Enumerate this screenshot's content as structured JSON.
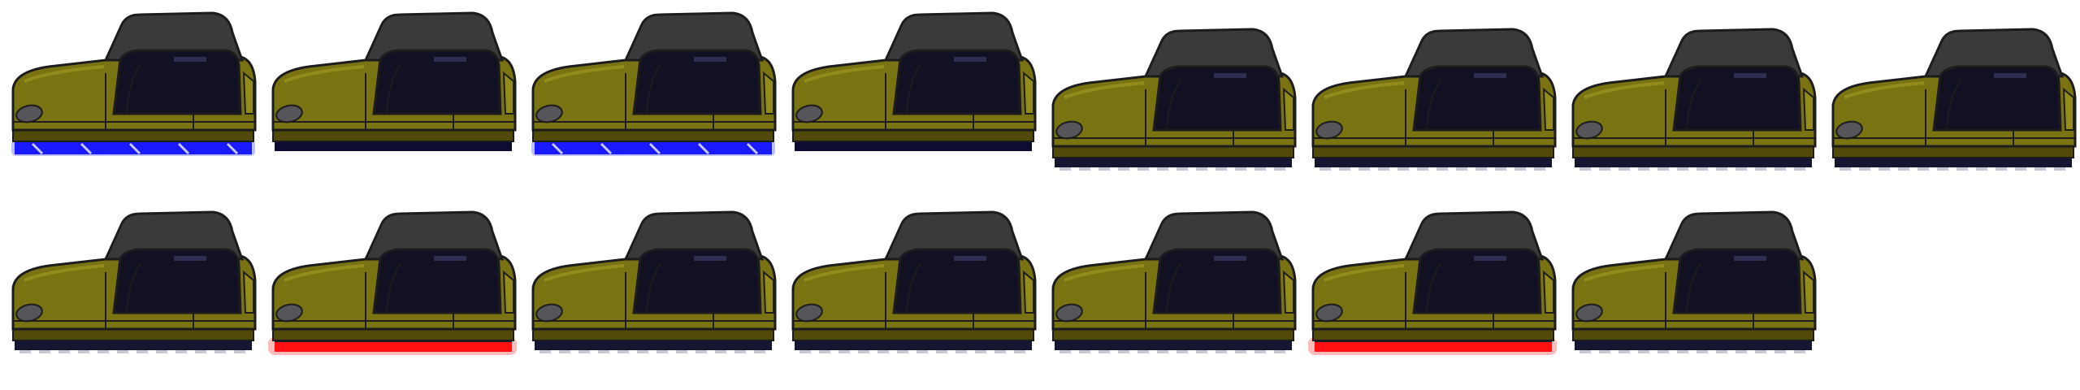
{
  "sheet": {
    "title": "",
    "frame_count": 15,
    "rows": 2
  },
  "palette": {
    "body": "#7a7312",
    "body_dark": "#4f4a0a",
    "body_light": "#938b1c",
    "outline": "#1c1c1c",
    "cab": "#3a3a3a",
    "window": "#121124",
    "window_light": "#2d2d52",
    "headlight": "#55555a",
    "skirt_plain": "#0d0d33",
    "skirt_ground": "#161633",
    "neon_blue": "#1a1aff",
    "neon_blue_glow": "#3d48ff",
    "neon_red": "#ff1111",
    "neon_red_glow": "#ff5555",
    "stripe": "#e8e8ff"
  },
  "frames": [
    {
      "id": "frame-1",
      "row": 0,
      "col": 0,
      "underglow": "blue-stripes",
      "raised": false
    },
    {
      "id": "frame-2",
      "row": 0,
      "col": 1,
      "underglow": "none",
      "raised": false
    },
    {
      "id": "frame-3",
      "row": 0,
      "col": 2,
      "underglow": "blue-stripes",
      "raised": false
    },
    {
      "id": "frame-4",
      "row": 0,
      "col": 3,
      "underglow": "none",
      "raised": false
    },
    {
      "id": "frame-5",
      "row": 0,
      "col": 4,
      "underglow": "ground",
      "raised": true
    },
    {
      "id": "frame-6",
      "row": 0,
      "col": 5,
      "underglow": "ground",
      "raised": true
    },
    {
      "id": "frame-7",
      "row": 0,
      "col": 6,
      "underglow": "ground",
      "raised": true
    },
    {
      "id": "frame-8",
      "row": 0,
      "col": 7,
      "underglow": "ground",
      "raised": true
    },
    {
      "id": "frame-9",
      "row": 1,
      "col": 0,
      "underglow": "ground",
      "raised": false
    },
    {
      "id": "frame-10",
      "row": 1,
      "col": 1,
      "underglow": "red",
      "raised": false
    },
    {
      "id": "frame-11",
      "row": 1,
      "col": 2,
      "underglow": "ground",
      "raised": false
    },
    {
      "id": "frame-12",
      "row": 1,
      "col": 3,
      "underglow": "ground",
      "raised": false
    },
    {
      "id": "frame-13",
      "row": 1,
      "col": 4,
      "underglow": "ground",
      "raised": false
    },
    {
      "id": "frame-14",
      "row": 1,
      "col": 5,
      "underglow": "red",
      "raised": false
    },
    {
      "id": "frame-15",
      "row": 1,
      "col": 6,
      "underglow": "ground",
      "raised": false
    }
  ]
}
